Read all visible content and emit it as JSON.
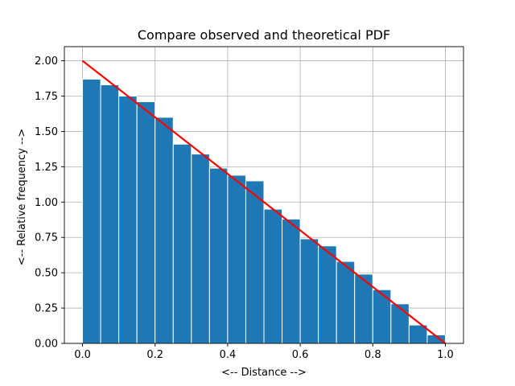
{
  "chart_data": {
    "type": "bar",
    "title": "Compare observed and theoretical PDF",
    "xlabel": "<-- Distance -->",
    "ylabel": "<-- Relative frequency -->",
    "xlim": [
      -0.05,
      1.05
    ],
    "ylim": [
      0.0,
      2.1
    ],
    "grid": true,
    "bin_edges": [
      0.0,
      0.05,
      0.1,
      0.15,
      0.2,
      0.25,
      0.3,
      0.35,
      0.4,
      0.45,
      0.5,
      0.55,
      0.6,
      0.65,
      0.7,
      0.75,
      0.8,
      0.85,
      0.9,
      0.95,
      1.0
    ],
    "values": [
      1.87,
      1.83,
      1.75,
      1.71,
      1.6,
      1.41,
      1.34,
      1.24,
      1.19,
      1.15,
      0.95,
      0.88,
      0.74,
      0.69,
      0.58,
      0.49,
      0.38,
      0.28,
      0.13,
      0.06
    ],
    "bar_color": "#1f77b4",
    "line": {
      "x": [
        0.0,
        1.0
      ],
      "y": [
        2.0,
        0.0
      ],
      "color": "#ff0000"
    },
    "x_ticks": [
      0.0,
      0.2,
      0.4,
      0.6,
      0.8,
      1.0
    ],
    "x_tick_labels": [
      "0.0",
      "0.2",
      "0.4",
      "0.6",
      "0.8",
      "1.0"
    ],
    "y_ticks": [
      0.0,
      0.25,
      0.5,
      0.75,
      1.0,
      1.25,
      1.5,
      1.75,
      2.0
    ],
    "y_tick_labels": [
      "0.00",
      "0.25",
      "0.50",
      "0.75",
      "1.00",
      "1.25",
      "1.50",
      "1.75",
      "2.00"
    ]
  }
}
